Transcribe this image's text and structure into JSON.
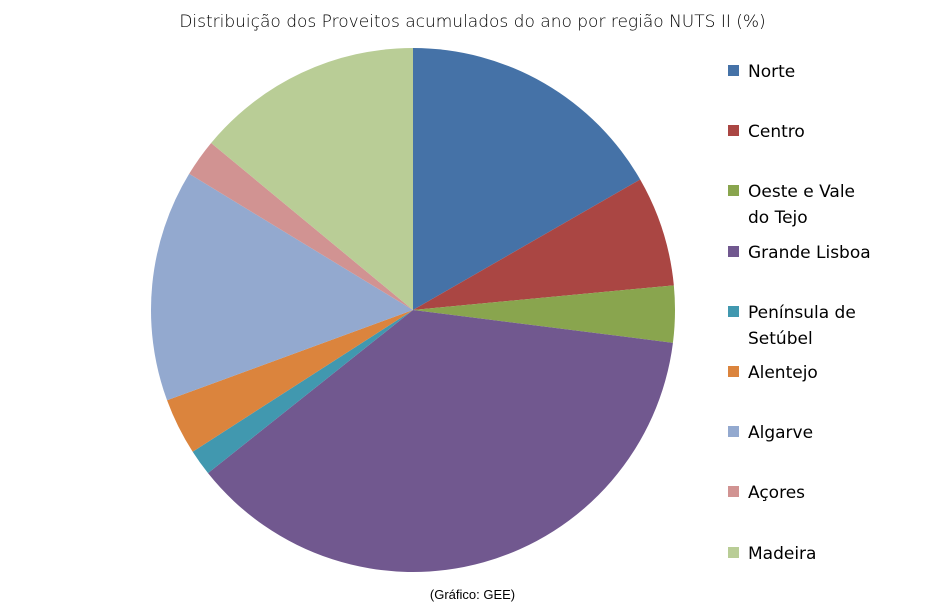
{
  "chart_data": {
    "type": "pie",
    "title": "Distribuição dos Proveitos acumulados do ano por região NUTS II (%)",
    "categories": [
      "Norte",
      "Centro",
      "Oeste e Vale do Tejo",
      "Grande Lisboa",
      "Península de Setúbel",
      "Alentejo",
      "Algarve",
      "Açores",
      "Madeira"
    ],
    "values": [
      16.7,
      6.8,
      3.5,
      37.3,
      1.6,
      3.5,
      14.3,
      2.3,
      14.0
    ],
    "colors": [
      "#4572A7",
      "#AA4643",
      "#89A54E",
      "#71588F",
      "#4198AF",
      "#DB843D",
      "#93A9CF",
      "#D19392",
      "#B9CD96"
    ],
    "legend_position": "right",
    "source": "(Gráfico: GEE)"
  }
}
